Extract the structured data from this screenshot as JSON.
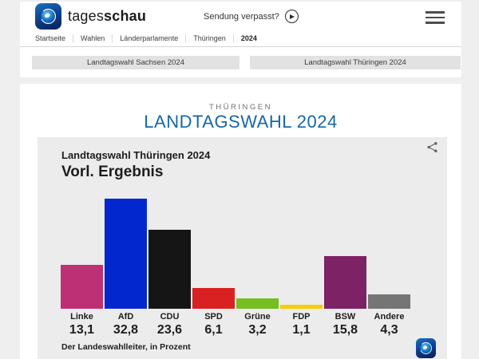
{
  "header": {
    "brand_regular": "tages",
    "brand_bold": "schau",
    "missed_label": "Sendung verpasst?",
    "breadcrumb": [
      {
        "label": "Startseite",
        "active": false
      },
      {
        "label": "Wahlen",
        "active": false
      },
      {
        "label": "Länderparlamente",
        "active": false
      },
      {
        "label": "Thüringen",
        "active": false
      },
      {
        "label": "2024",
        "active": true
      }
    ],
    "tabs": [
      "Landtagswahl Sachsen 2024",
      "Landtagswahl Thüringen 2024"
    ]
  },
  "main": {
    "kicker": "THÜRINGEN",
    "title": "LANDTAGSWAHL 2024"
  },
  "colors": {
    "title_blue": "#1567a8",
    "page_bg": "#efefef",
    "chart_card_bg": "#ececec"
  },
  "chart_data": {
    "type": "bar",
    "title": "Landtagswahl Thüringen 2024",
    "subtitle": "Vorl. Ergebnis",
    "source": "Der Landeswahlleiter, in Prozent",
    "unit": "Prozent",
    "categories": [
      "Linke",
      "AfD",
      "CDU",
      "SPD",
      "Grüne",
      "FDP",
      "BSW",
      "Andere"
    ],
    "values": [
      13.1,
      32.8,
      23.6,
      6.1,
      3.2,
      1.1,
      15.8,
      4.3
    ],
    "value_labels": [
      "13,1",
      "32,8",
      "23,6",
      "6,1",
      "3,2",
      "1,1",
      "15,8",
      "4,3"
    ],
    "bar_colors": [
      "#be3075",
      "#0327ce",
      "#151515",
      "#d92121",
      "#77be21",
      "#f7ce00",
      "#7d2265",
      "#757575"
    ],
    "ylim": [
      0,
      35
    ],
    "grid": false,
    "legend": "none"
  }
}
